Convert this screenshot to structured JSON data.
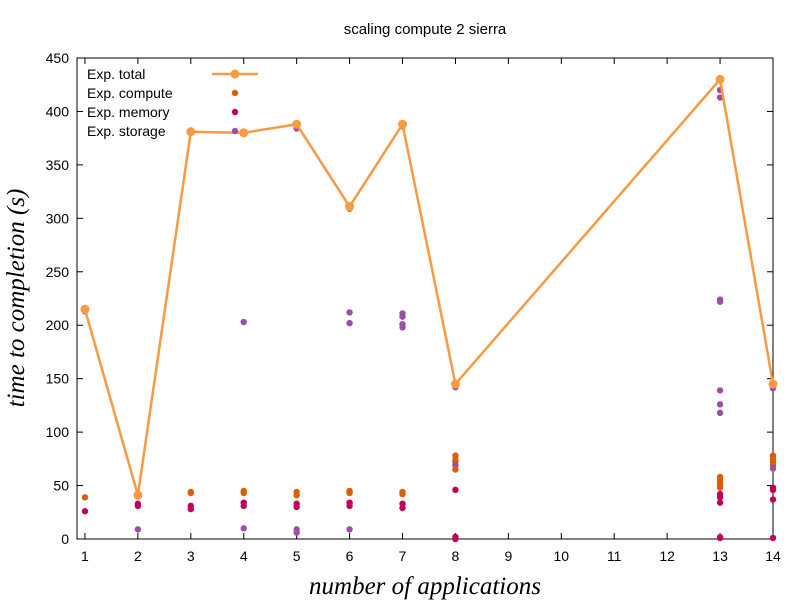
{
  "chart_data": {
    "type": "line",
    "title": "scaling compute 2 sierra",
    "xlabel": "number of applications",
    "ylabel": "time to completion (s)",
    "x_ticks": [
      1,
      2,
      3,
      4,
      5,
      6,
      7,
      8,
      9,
      10,
      11,
      12,
      13,
      14
    ],
    "xlim": [
      0.85,
      14
    ],
    "ylim": [
      0,
      450
    ],
    "y_ticks": [
      0,
      50,
      100,
      150,
      200,
      250,
      300,
      350,
      400,
      450
    ],
    "grid": false,
    "legend_position": "top-left",
    "series": [
      {
        "name": "Exp.  total",
        "style": "line",
        "color": "#f79a42",
        "x": [
          1,
          2,
          3,
          4,
          5,
          6,
          7,
          8,
          13,
          14
        ],
        "y": [
          215,
          41,
          381,
          380,
          388,
          311,
          388,
          145,
          430,
          145
        ]
      },
      {
        "name": "Exp.  compute",
        "style": "points",
        "color": "#d95f02",
        "x": [
          1,
          2,
          2,
          3,
          3,
          4,
          4,
          5,
          5,
          6,
          6,
          7,
          7,
          8,
          8,
          8,
          13,
          13,
          13,
          13,
          13,
          14,
          14,
          14
        ],
        "y": [
          39,
          42,
          40,
          44,
          43,
          45,
          43,
          44,
          41,
          45,
          43,
          44,
          42,
          78,
          74,
          65,
          58,
          55,
          52,
          50,
          48,
          78,
          75,
          72
        ]
      },
      {
        "name": "Exp.  memory",
        "style": "points",
        "color": "#c2005a",
        "x": [
          1,
          2,
          2,
          3,
          3,
          4,
          4,
          5,
          5,
          6,
          6,
          7,
          7,
          8,
          8,
          8,
          13,
          13,
          13,
          13,
          14,
          14,
          14,
          14
        ],
        "y": [
          26,
          33,
          31,
          31,
          28,
          34,
          31,
          33,
          30,
          34,
          31,
          33,
          29,
          46,
          2,
          0,
          42,
          39,
          34,
          1,
          48,
          46,
          37,
          1
        ]
      },
      {
        "name": "Exp.  storage",
        "style": "points",
        "color": "#9b4fa5",
        "x": [
          1,
          2,
          3,
          4,
          4,
          4,
          5,
          5,
          5,
          5,
          6,
          6,
          6,
          6,
          7,
          7,
          7,
          7,
          7,
          8,
          8,
          8,
          13,
          13,
          13,
          13,
          13,
          13,
          13,
          13,
          14,
          14,
          14,
          14
        ],
        "y": [
          213,
          9,
          381,
          381,
          203,
          10,
          384,
          386,
          9,
          6,
          309,
          212,
          202,
          9,
          386,
          211,
          208,
          201,
          198,
          142,
          72,
          69,
          420,
          413,
          224,
          222,
          139,
          126,
          118,
          2,
          141,
          72,
          69,
          66
        ]
      }
    ]
  }
}
